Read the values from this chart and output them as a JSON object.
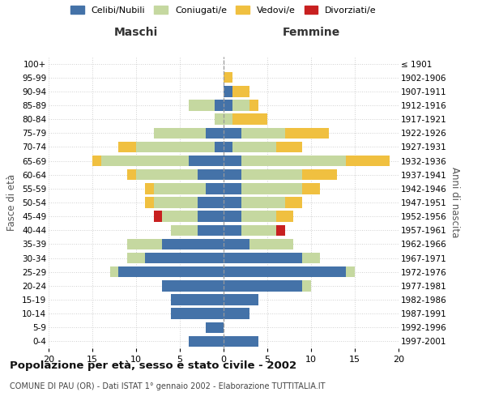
{
  "age_groups": [
    "0-4",
    "5-9",
    "10-14",
    "15-19",
    "20-24",
    "25-29",
    "30-34",
    "35-39",
    "40-44",
    "45-49",
    "50-54",
    "55-59",
    "60-64",
    "65-69",
    "70-74",
    "75-79",
    "80-84",
    "85-89",
    "90-94",
    "95-99",
    "100+"
  ],
  "birth_years": [
    "1997-2001",
    "1992-1996",
    "1987-1991",
    "1982-1986",
    "1977-1981",
    "1972-1976",
    "1967-1971",
    "1962-1966",
    "1957-1961",
    "1952-1956",
    "1947-1951",
    "1942-1946",
    "1937-1941",
    "1932-1936",
    "1927-1931",
    "1922-1926",
    "1917-1921",
    "1912-1916",
    "1907-1911",
    "1902-1906",
    "≤ 1901"
  ],
  "colors": {
    "celibi": "#4472a8",
    "coniugati": "#c5d8a0",
    "vedovi": "#f0c040",
    "divorziati": "#c82020"
  },
  "maschi": {
    "celibi": [
      4,
      2,
      6,
      6,
      7,
      12,
      9,
      7,
      3,
      3,
      3,
      2,
      3,
      4,
      1,
      2,
      0,
      1,
      0,
      0,
      0
    ],
    "coniugati": [
      0,
      0,
      0,
      0,
      0,
      1,
      2,
      4,
      3,
      4,
      5,
      6,
      7,
      10,
      9,
      6,
      1,
      3,
      0,
      0,
      0
    ],
    "vedovi": [
      0,
      0,
      0,
      0,
      0,
      0,
      0,
      0,
      0,
      0,
      1,
      1,
      1,
      1,
      2,
      0,
      0,
      0,
      0,
      0,
      0
    ],
    "divorziati": [
      0,
      0,
      0,
      0,
      0,
      0,
      0,
      0,
      0,
      1,
      0,
      0,
      0,
      0,
      0,
      0,
      0,
      0,
      0,
      0,
      0
    ]
  },
  "femmine": {
    "celibi": [
      4,
      0,
      3,
      4,
      9,
      14,
      9,
      3,
      2,
      2,
      2,
      2,
      2,
      2,
      1,
      2,
      0,
      1,
      1,
      0,
      0
    ],
    "coniugati": [
      0,
      0,
      0,
      0,
      1,
      1,
      2,
      5,
      4,
      4,
      5,
      7,
      7,
      12,
      5,
      5,
      1,
      2,
      0,
      0,
      0
    ],
    "vedovi": [
      0,
      0,
      0,
      0,
      0,
      0,
      0,
      0,
      0,
      2,
      2,
      2,
      4,
      5,
      3,
      5,
      4,
      1,
      2,
      1,
      0
    ],
    "divorziati": [
      0,
      0,
      0,
      0,
      0,
      0,
      0,
      0,
      1,
      0,
      0,
      0,
      0,
      0,
      0,
      0,
      0,
      0,
      0,
      0,
      0
    ]
  },
  "title": "Popolazione per età, sesso e stato civile - 2002",
  "subtitle": "COMUNE DI PAU (OR) - Dati ISTAT 1° gennaio 2002 - Elaborazione TUTTITALIA.IT",
  "ylabel": "Fasce di età",
  "ylabel_right": "Anni di nascita",
  "xlabel_left": "Maschi",
  "xlabel_right": "Femmine",
  "xlim": 20,
  "legend_labels": [
    "Celibi/Nubili",
    "Coniugati/e",
    "Vedovi/e",
    "Divorziati/e"
  ],
  "background_color": "#ffffff",
  "grid_color": "#d0d0d0"
}
